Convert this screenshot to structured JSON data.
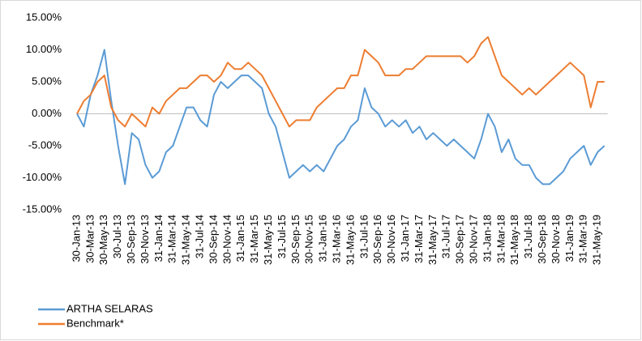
{
  "chart_data": {
    "type": "line",
    "categories": [
      "30-Jan-13",
      null,
      "30-Mar-13",
      null,
      "30-May-13",
      null,
      "30-Jul-13",
      null,
      "30-Sep-13",
      null,
      "30-Nov-13",
      null,
      "31-Jan-14",
      null,
      "31-Mar-14",
      null,
      "31-May-14",
      null,
      "31-Jul-14",
      null,
      "30-Sep-14",
      null,
      "30-Nov-14",
      null,
      "31-Jan-15",
      null,
      "31-Mar-15",
      null,
      "31-May-15",
      null,
      "31-Jul-15",
      null,
      "30-Sep-15",
      null,
      "30-Nov-15",
      null,
      "31-Jan-16",
      null,
      "31-Mar-16",
      null,
      "31-May-16",
      null,
      "31-Jul-16",
      null,
      "30-Sep-16",
      null,
      "30-Nov-16",
      null,
      "31-Jan-17",
      null,
      "31-Mar-17",
      null,
      "31-May-17",
      null,
      "31-Jul-17",
      null,
      "30-Sep-17",
      null,
      "30-Nov-17",
      null,
      "31-Jan-18",
      null,
      "31-Mar-18",
      null,
      "31-May-18",
      null,
      "31-Jul-18",
      null,
      "30-Sep-18",
      null,
      "30-Nov-18",
      null,
      "31-Jan-19",
      null,
      "31-Mar-19",
      null,
      "31-May-19",
      null
    ],
    "series": [
      {
        "name": "ARTHA SELARAS",
        "color": "#5b9bd5",
        "values": [
          0,
          -2,
          3,
          6,
          10,
          2,
          -5,
          -11,
          -3,
          -4,
          -8,
          -10,
          -9,
          -6,
          -5,
          -2,
          1,
          1,
          -1,
          -2,
          3,
          5,
          4,
          5,
          6,
          6,
          5,
          4,
          0,
          -2,
          -6,
          -10,
          -9,
          -8,
          -9,
          -8,
          -9,
          -7,
          -5,
          -4,
          -2,
          -1,
          4,
          1,
          0,
          -2,
          -1,
          -2,
          -1,
          -3,
          -2,
          -4,
          -3,
          -4,
          -5,
          -4,
          -5,
          -6,
          -7,
          -4,
          0,
          -2,
          -6,
          -4,
          -7,
          -8,
          -8,
          -10,
          -11,
          -11,
          -10,
          -9,
          -7,
          -6,
          -5,
          -8,
          -6,
          -5
        ]
      },
      {
        "name": "Benchmark*",
        "color": "#ed7d31",
        "values": [
          0,
          2,
          3,
          5,
          6,
          1,
          -1,
          -2,
          0,
          -1,
          -2,
          1,
          0,
          2,
          3,
          4,
          4,
          5,
          6,
          6,
          5,
          6,
          8,
          7,
          7,
          8,
          7,
          6,
          4,
          2,
          0,
          -2,
          -1,
          -1,
          -1,
          1,
          2,
          3,
          4,
          4,
          6,
          6,
          10,
          9,
          8,
          6,
          6,
          6,
          7,
          7,
          8,
          9,
          9,
          9,
          9,
          9,
          9,
          8,
          9,
          11,
          12,
          9,
          6,
          5,
          4,
          3,
          4,
          3,
          4,
          5,
          6,
          7,
          8,
          7,
          6,
          1,
          5,
          5
        ]
      }
    ],
    "ylim": [
      -15,
      15
    ],
    "yticks": [
      {
        "value": 15,
        "label": "15.00%"
      },
      {
        "value": 10,
        "label": "10.00%"
      },
      {
        "value": 5,
        "label": "5.00%"
      },
      {
        "value": 0,
        "label": "0.00%"
      },
      {
        "value": -5,
        "label": "-5.00%"
      },
      {
        "value": -10,
        "label": "-10.00%"
      },
      {
        "value": -15,
        "label": "-15.00%"
      }
    ]
  }
}
